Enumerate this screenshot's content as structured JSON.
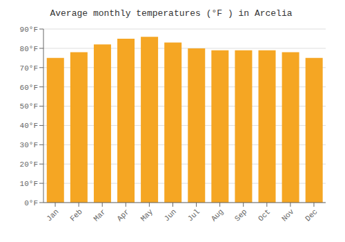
{
  "chart_data": {
    "type": "bar",
    "title": "Average monthly temperatures (°F ) in Arcelia",
    "categories": [
      "Jan",
      "Feb",
      "Mar",
      "Apr",
      "May",
      "Jun",
      "Jul",
      "Aug",
      "Sep",
      "Oct",
      "Nov",
      "Dec"
    ],
    "values": [
      75,
      78,
      82,
      85,
      86,
      83,
      80,
      79,
      79,
      79,
      78,
      75
    ],
    "color": "#F5A623",
    "ylim": [
      0,
      90
    ],
    "yticks": [
      {
        "value": 0,
        "label": "0°F"
      },
      {
        "value": 10,
        "label": "10°F"
      },
      {
        "value": 20,
        "label": "20°F"
      },
      {
        "value": 30,
        "label": "30°F"
      },
      {
        "value": 40,
        "label": "40°F"
      },
      {
        "value": 50,
        "label": "50°F"
      },
      {
        "value": 60,
        "label": "60°F"
      },
      {
        "value": 70,
        "label": "70°F"
      },
      {
        "value": 80,
        "label": "80°F"
      },
      {
        "value": 90,
        "label": "90°F"
      }
    ],
    "grid": true
  }
}
